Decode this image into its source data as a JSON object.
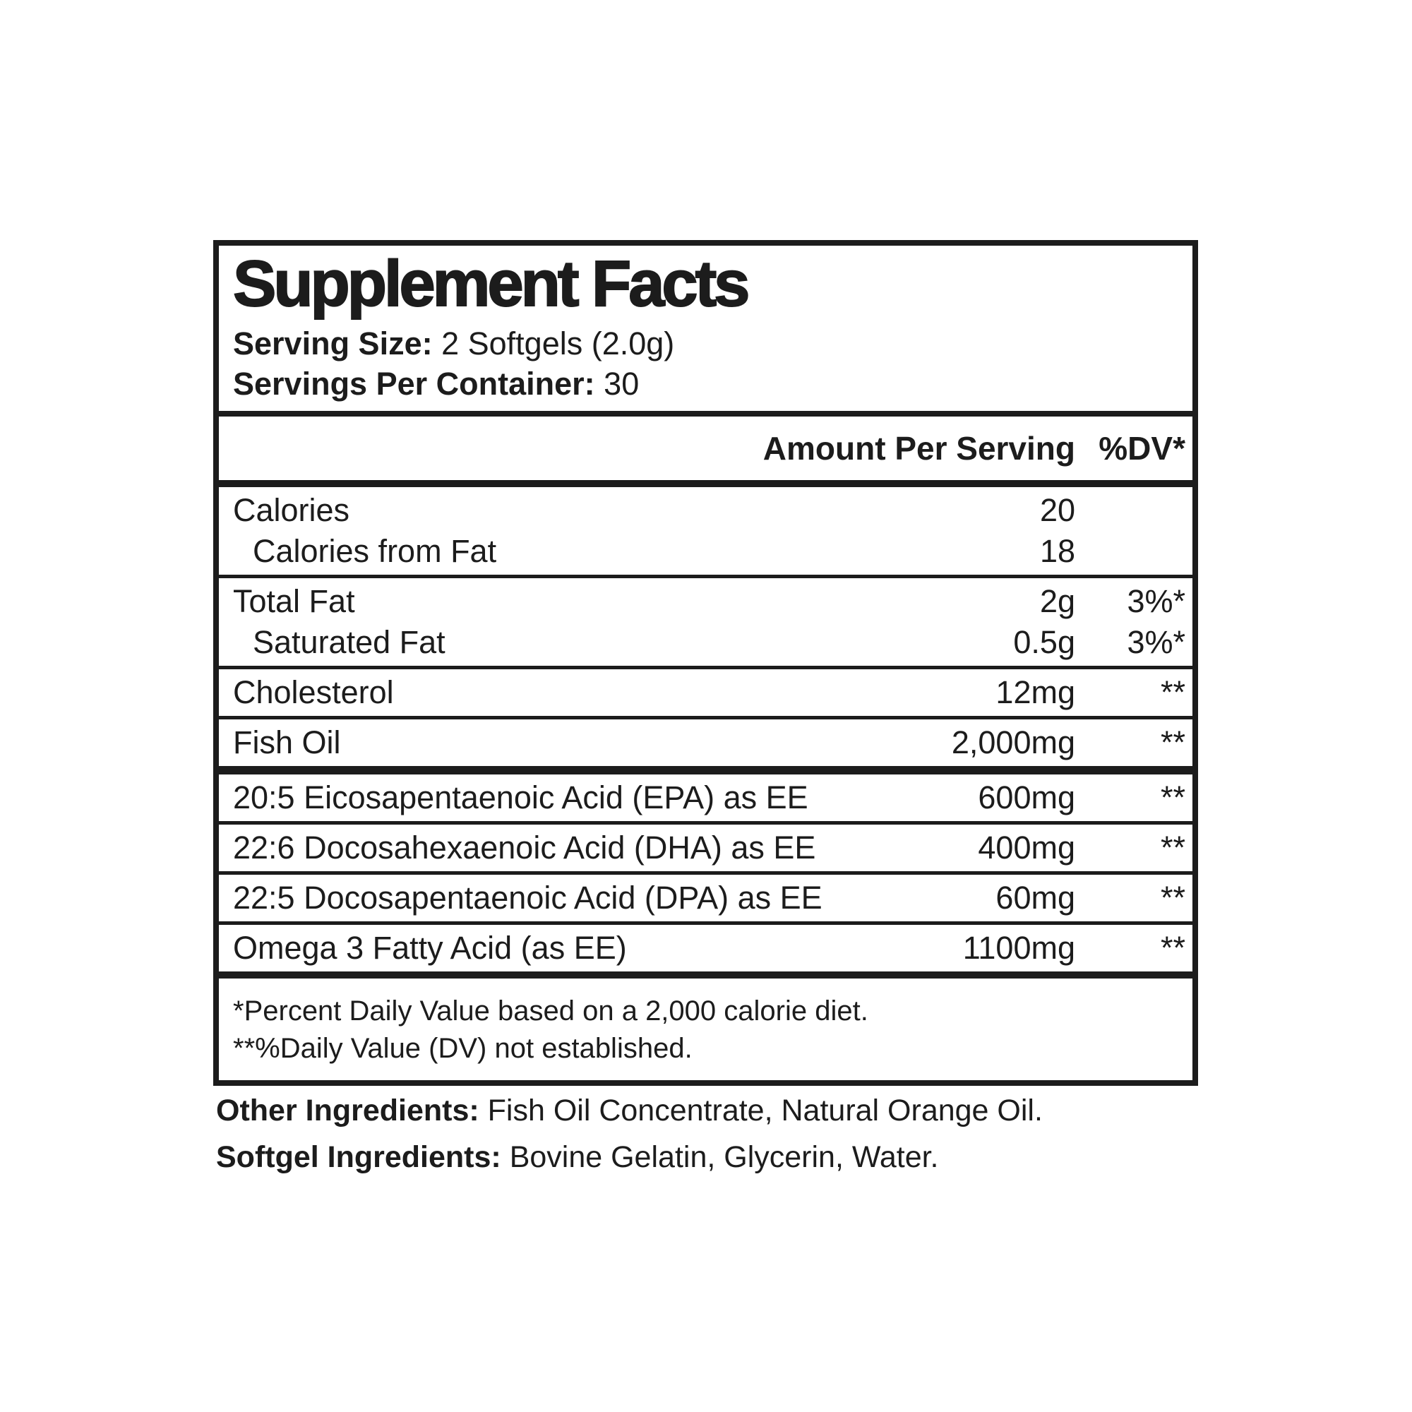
{
  "panel": {
    "title": "Supplement Facts",
    "serving_size_label": "Serving Size:",
    "serving_size_value": "2 Softgels (2.0g)",
    "servings_per_container_label": "Servings Per Container:",
    "servings_per_container_value": "30",
    "col_header": {
      "amount": "Amount Per Serving",
      "dv": "%DV*"
    },
    "rows": [
      {
        "name": "Calories",
        "amount": "20",
        "dv": ""
      },
      {
        "name": "Calories from Fat",
        "amount": "18",
        "dv": ""
      },
      {
        "name": "Total Fat",
        "amount": "2g",
        "dv": "3%*"
      },
      {
        "name": "Saturated Fat",
        "amount": "0.5g",
        "dv": "3%*"
      },
      {
        "name": "Cholesterol",
        "amount": "12mg",
        "dv": "**"
      },
      {
        "name": "Fish Oil",
        "amount": "2,000mg",
        "dv": "**"
      },
      {
        "name": "20:5 Eicosapentaenoic Acid (EPA) as EE",
        "amount": "600mg",
        "dv": "**"
      },
      {
        "name": "22:6 Docosahexaenoic Acid (DHA) as EE",
        "amount": "400mg",
        "dv": "**"
      },
      {
        "name": "22:5 Docosapentaenoic Acid (DPA) as EE",
        "amount": "60mg",
        "dv": "**"
      },
      {
        "name": "Omega 3 Fatty Acid (as EE)",
        "amount": "1100mg",
        "dv": "**"
      }
    ],
    "footnotes": [
      "*Percent Daily Value based on a 2,000 calorie diet.",
      "**%Daily Value (DV) not established."
    ]
  },
  "ingredients": [
    {
      "label": "Other Ingredients:",
      "value": "Fish Oil Concentrate, Natural Orange Oil."
    },
    {
      "label": "Softgel Ingredients:",
      "value": "Bovine Gelatin, Glycerin, Water."
    }
  ],
  "colors": {
    "text": "#1c1c1c",
    "background": "#ffffff"
  }
}
